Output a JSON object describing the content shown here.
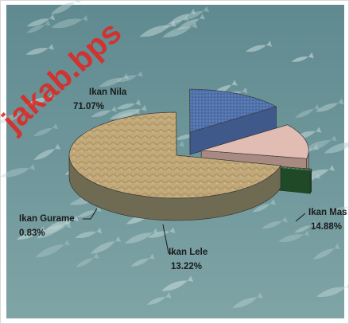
{
  "watermark": "jakab.bps",
  "colors": {
    "border": "#d7d7d7",
    "background_top": "#5f8a90",
    "background_bottom": "#7fa4a6",
    "fish": "#b9d0cf",
    "watermark": "#e3241f"
  },
  "chart_data": {
    "type": "pie",
    "style": "3d-exploded",
    "title": "",
    "slices": [
      {
        "label": "Ikan Nila",
        "value": 71.07,
        "value_text": "71.07%",
        "color": "#c2a97a",
        "side_color": "#6f6a52",
        "texture": "sand"
      },
      {
        "label": "Ikan Mas",
        "value": 14.88,
        "value_text": "14.88%",
        "color": "#5d7fb8",
        "side_color": "#3f5a8a",
        "texture": "weave"
      },
      {
        "label": "Ikan Lele",
        "value": 13.22,
        "value_text": "13.22%",
        "color": "#e1bcb2",
        "side_color": "#a98a82",
        "texture": "plain"
      },
      {
        "label": "Ikan Gurame",
        "value": 0.83,
        "value_text": "0.83%",
        "color": "#2f6e3a",
        "side_color": "#1e4a27",
        "texture": "marble"
      }
    ]
  }
}
